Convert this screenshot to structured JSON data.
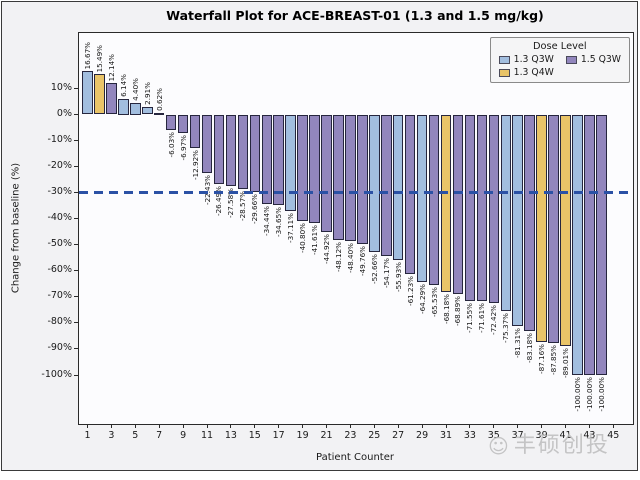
{
  "title": "Waterfall Plot for ACE-BREAST-01 (1.3 and 1.5 mg/kg)",
  "axes": {
    "y_label": "Change from baseline (%)",
    "x_label": "Patient Counter",
    "y_tick_values": [
      10,
      0,
      -10,
      -20,
      -30,
      -40,
      -50,
      -60,
      -70,
      -80,
      -90,
      -100
    ],
    "y_tick_labels": [
      "10%",
      "0%",
      "-10%",
      "-20%",
      "-30%",
      "-40%",
      "-50%",
      "-60%",
      "-70%",
      "-80%",
      "-90%",
      "-100%"
    ],
    "x_tick_values": [
      1,
      3,
      5,
      7,
      9,
      11,
      13,
      15,
      17,
      19,
      21,
      23,
      25,
      27,
      29,
      31,
      33,
      35,
      37,
      39,
      41,
      43,
      45
    ]
  },
  "legend": {
    "title": "Dose Level",
    "items": [
      {
        "label": "1.3 Q3W",
        "color": "#a2bedf"
      },
      {
        "label": "1.5 Q3W",
        "color": "#9286bd"
      },
      {
        "label": "1.3 Q4W",
        "color": "#e9c468"
      }
    ]
  },
  "reference_line": {
    "value_pct": -30,
    "color": "#2b51a5",
    "style": "dashed"
  },
  "watermark": {
    "icon": "smiley-face-icon",
    "icon_glyph": "☺",
    "text": "丰硕创投"
  },
  "chart_data": {
    "type": "bar",
    "title": "Waterfall Plot for ACE-BREAST-01 (1.3 and 1.5 mg/kg)",
    "xlabel": "Patient Counter",
    "ylabel": "Change from baseline (%)",
    "ylim": [
      -119,
      31
    ],
    "xlim": [
      0,
      46
    ],
    "grid": false,
    "legend_position": "upper right",
    "reference_line_pct": -30,
    "categories": [
      1,
      2,
      3,
      4,
      5,
      6,
      7,
      8,
      9,
      10,
      11,
      12,
      13,
      14,
      15,
      16,
      17,
      18,
      19,
      20,
      21,
      22,
      23,
      24,
      25,
      26,
      27,
      28,
      29,
      30,
      31,
      32,
      33,
      34,
      35,
      36,
      37,
      38,
      39,
      40,
      41,
      42,
      43,
      44
    ],
    "series": [
      {
        "name": "Change from baseline (%)",
        "values": [
          16.67,
          15.49,
          12.14,
          6.14,
          4.4,
          2.91,
          0.62,
          -6.03,
          -6.97,
          -12.92,
          -22.43,
          -26.49,
          -27.58,
          -28.57,
          -29.66,
          -34.44,
          -34.65,
          -37.11,
          -40.8,
          -41.61,
          -44.92,
          -48.12,
          -48.4,
          -49.76,
          -52.66,
          -54.17,
          -55.93,
          -61.23,
          -64.29,
          -65.53,
          -68.18,
          -68.89,
          -71.55,
          -71.61,
          -72.42,
          -75.37,
          -81.31,
          -83.18,
          -87.16,
          -87.85,
          -89.01,
          -100.0,
          -100.0,
          -100.0
        ],
        "bar_labels": [
          "16.67%",
          "15.49%",
          "12.14%",
          "6.14%",
          "4.40%",
          "2.91%",
          "0.62%",
          "-6.03%",
          "-6.97%",
          "-12.92%",
          "-22.43%",
          "-26.49%",
          "-27.58%",
          "-28.57%",
          "-29.66%",
          "-34.44%",
          "-34.65%",
          "-37.11%",
          "-40.80%",
          "-41.61%",
          "-44.92%",
          "-48.12%",
          "-48.40%",
          "-49.76%",
          "-52.66%",
          "-54.17%",
          "-55.93%",
          "-61.23%",
          "-64.29%",
          "-65.53%",
          "-68.18%",
          "-68.89%",
          "-71.55%",
          "-71.61%",
          "-72.42%",
          "-75.37%",
          "-81.31%",
          "-83.18%",
          "-87.16%",
          "-87.85%",
          "-89.01%",
          "-100.00%",
          "-100.00%",
          "-100.00%"
        ],
        "dose_level": [
          "1.3 Q3W",
          "1.3 Q4W",
          "1.5 Q3W",
          "1.3 Q3W",
          "1.3 Q3W",
          "1.3 Q3W",
          "1.3 Q3W",
          "1.5 Q3W",
          "1.5 Q3W",
          "1.5 Q3W",
          "1.5 Q3W",
          "1.5 Q3W",
          "1.5 Q3W",
          "1.5 Q3W",
          "1.5 Q3W",
          "1.5 Q3W",
          "1.5 Q3W",
          "1.3 Q3W",
          "1.5 Q3W",
          "1.5 Q3W",
          "1.5 Q3W",
          "1.5 Q3W",
          "1.5 Q3W",
          "1.5 Q3W",
          "1.3 Q3W",
          "1.5 Q3W",
          "1.3 Q3W",
          "1.5 Q3W",
          "1.3 Q3W",
          "1.5 Q3W",
          "1.3 Q4W",
          "1.5 Q3W",
          "1.5 Q3W",
          "1.5 Q3W",
          "1.5 Q3W",
          "1.3 Q3W",
          "1.3 Q3W",
          "1.5 Q3W",
          "1.3 Q4W",
          "1.5 Q3W",
          "1.3 Q4W",
          "1.3 Q3W",
          "1.5 Q3W",
          "1.5 Q3W"
        ]
      }
    ]
  }
}
